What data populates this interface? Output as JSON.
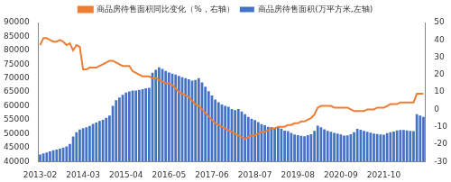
{
  "chart_data": {
    "type": "bar",
    "categories": [
      "2013-02",
      null,
      null,
      null,
      null,
      null,
      null,
      null,
      null,
      null,
      null,
      null,
      null,
      "2014-03",
      null,
      null,
      null,
      null,
      null,
      null,
      null,
      null,
      null,
      null,
      null,
      null,
      "2015-04",
      null,
      null,
      null,
      null,
      null,
      null,
      null,
      null,
      null,
      null,
      null,
      null,
      "2016-05",
      null,
      null,
      null,
      null,
      null,
      null,
      null,
      null,
      null,
      null,
      null,
      null,
      "2017-06",
      null,
      null,
      null,
      null,
      null,
      null,
      null,
      null,
      null,
      null,
      null,
      null,
      "2018-07",
      null,
      null,
      null,
      null,
      null,
      null,
      null,
      null,
      null,
      null,
      null,
      null,
      "2019-08",
      null,
      null,
      null,
      null,
      null,
      null,
      null,
      null,
      null,
      null,
      null,
      null,
      "2020-09",
      null,
      null,
      null,
      null,
      null,
      null,
      null,
      null,
      null,
      null,
      null,
      null,
      "2021-10",
      null,
      null,
      null,
      null,
      null,
      null,
      null,
      null,
      null,
      null,
      null,
      null
    ],
    "series": [
      {
        "name": "商品房待售面积(万平方米,左轴)",
        "type": "bar",
        "color": "#4472c4",
        "values": [
          42500,
          42900,
          43200,
          43600,
          44000,
          44300,
          44600,
          45000,
          45400,
          46300,
          49000,
          50500,
          51500,
          52000,
          52300,
          52800,
          53500,
          54000,
          54600,
          55000,
          55700,
          56500,
          60000,
          62000,
          63000,
          64000,
          64800,
          65200,
          65500,
          65500,
          65800,
          66000,
          66300,
          66500,
          71900,
          73000,
          73900,
          73300,
          72600,
          72000,
          71600,
          71300,
          70800,
          70300,
          70000,
          69600,
          69100,
          69300,
          70000,
          68400,
          66900,
          65300,
          63700,
          62300,
          61300,
          60500,
          60000,
          59700,
          58900,
          58500,
          58900,
          58000,
          57000,
          56000,
          55400,
          54900,
          54200,
          53400,
          53000,
          52500,
          52400,
          52000,
          52400,
          51800,
          51100,
          50900,
          50300,
          49700,
          49500,
          49200,
          49100,
          49500,
          49800,
          51000,
          52900,
          52300,
          51600,
          51000,
          50700,
          50300,
          50000,
          49700,
          49300,
          49400,
          49800,
          50500,
          51700,
          51400,
          51000,
          50700,
          50400,
          50000,
          49900,
          49700,
          49600,
          50200,
          50500,
          50800,
          51200,
          51300,
          51300,
          51200,
          51000,
          50900,
          57000,
          56500,
          56000
        ]
      },
      {
        "name": "商品房待售面积同比变化（%，右轴）",
        "type": "line",
        "color": "#ed7d31",
        "axis": "y2",
        "values": [
          37,
          41,
          41,
          40,
          39,
          39,
          40,
          39,
          37,
          38,
          34,
          37,
          36,
          23,
          23,
          24,
          24,
          24,
          25,
          26,
          27,
          28,
          28,
          27,
          26,
          25,
          25,
          25,
          22,
          21,
          20,
          19,
          19,
          19,
          18,
          18,
          17,
          16,
          15,
          15,
          14,
          12,
          10,
          9,
          8,
          7,
          5,
          3,
          2,
          0,
          -2,
          -4,
          -6,
          -8,
          -9,
          -10,
          -11,
          -12,
          -13,
          -14,
          -15,
          -16,
          -17,
          -16,
          -15,
          -15,
          -14,
          -13,
          -13,
          -12,
          -11,
          -11,
          -10,
          -10,
          -10,
          -9,
          -9,
          -8,
          -8,
          -7,
          -7,
          -6,
          -5,
          -3,
          1,
          2,
          2,
          2,
          2,
          1,
          1,
          1,
          1,
          1,
          0,
          -1,
          -1,
          -1,
          -1,
          0,
          0,
          0,
          1,
          1,
          1,
          2,
          3,
          3,
          3,
          4,
          4,
          4,
          4,
          4,
          9,
          9,
          9
        ]
      }
    ],
    "ylim": [
      40000,
      90000
    ],
    "yticks": [
      40000,
      45000,
      50000,
      55000,
      60000,
      65000,
      70000,
      75000,
      80000,
      85000,
      90000
    ],
    "y2lim": [
      -30,
      50
    ],
    "y2ticks": [
      -30,
      -20,
      -10,
      0,
      10,
      20,
      30,
      40,
      50
    ],
    "grid": false,
    "legend": "top"
  }
}
